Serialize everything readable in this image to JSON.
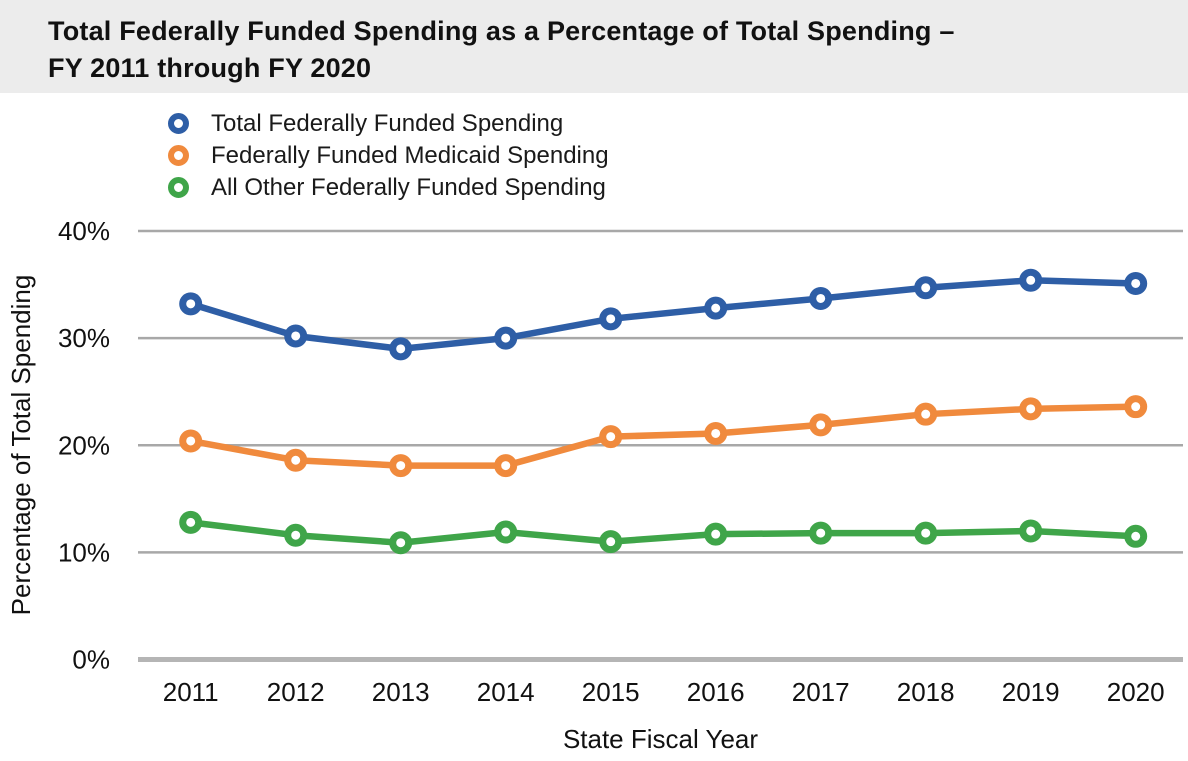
{
  "header": {
    "title_line1": "Total Federally Funded Spending as a Percentage of Total Spending –",
    "title_line2": "FY 2011 through FY 2020"
  },
  "chart_data": {
    "type": "line",
    "title": "Total Federally Funded Spending as a Percentage of Total Spending – FY 2011 through FY 2020",
    "categories": [
      "2011",
      "2012",
      "2013",
      "2014",
      "2015",
      "2016",
      "2017",
      "2018",
      "2019",
      "2020"
    ],
    "series": [
      {
        "name": "Total Federally Funded Spending",
        "color": "#2e5ea6",
        "values": [
          33.2,
          30.2,
          29.0,
          30.0,
          31.8,
          32.8,
          33.7,
          34.7,
          35.4,
          35.1
        ]
      },
      {
        "name": "Federally Funded Medicaid Spending",
        "color": "#f08a3d",
        "values": [
          20.4,
          18.6,
          18.1,
          18.1,
          20.8,
          21.1,
          21.9,
          22.9,
          23.4,
          23.6
        ]
      },
      {
        "name": "All Other Federally Funded Spending",
        "color": "#3fa549",
        "values": [
          12.8,
          11.6,
          10.9,
          11.9,
          11.0,
          11.7,
          11.8,
          11.8,
          12.0,
          11.5
        ]
      }
    ],
    "xlabel": "State Fiscal Year",
    "ylabel": "Percentage of Total Spending",
    "ylim": [
      0,
      40
    ],
    "yticks": [
      0,
      10,
      20,
      30,
      40
    ],
    "ytick_labels": [
      "0%",
      "10%",
      "20%",
      "30%",
      "40%"
    ],
    "grid": true,
    "legend_position": "top-left",
    "marker_style": "open-circle"
  },
  "style_colors": {
    "title_band_bg": "#ececec",
    "gridline": "#a8a8a8",
    "baseline": "#b5b5b5",
    "text": "#111111",
    "marker_fill": "#ffffff"
  }
}
